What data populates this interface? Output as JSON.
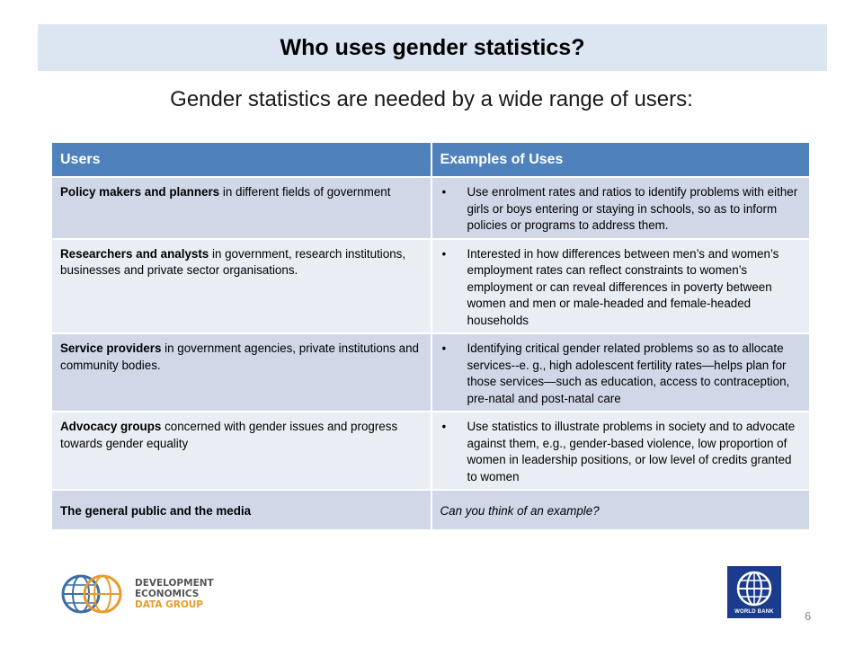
{
  "slide": {
    "title": "Who uses gender statistics?",
    "subtitle": "Gender statistics are needed by a wide range of users:",
    "page_number": "6"
  },
  "table": {
    "headers": [
      "Users",
      "Examples of Uses"
    ],
    "rows": [
      {
        "user_bold": "Policy makers and planners",
        "user_rest": " in different fields of government",
        "example": "Use enrolment rates and ratios to identify problems with either girls or boys entering or staying in schools, so as to inform policies or programs to address them."
      },
      {
        "user_bold": "Researchers and analysts",
        "user_rest": " in government, research institutions, businesses and private sector organisations.",
        "example": "Interested in how differences between men’s and women’s employment rates can reflect constraints to women’s employment  or  can reveal differences in poverty between women and men or male-headed and female-headed households"
      },
      {
        "user_bold": "Service providers",
        "user_rest": " in government agencies, private institutions and community bodies.",
        "example": "Identifying critical gender related problems so as to allocate services--e. g., high adolescent fertility rates—helps plan for those services—such as education, access to contraception, pre-natal and post-natal care"
      },
      {
        "user_bold": "Advocacy groups",
        "user_rest": " concerned with gender issues and progress towards gender equality",
        "example": "Use statistics to illustrate  problems in society and to advocate against them, e.g., gender-based violence, low proportion of women in leadership positions, or low level of credits granted to women"
      }
    ],
    "last_row": {
      "user": "The general public and the media",
      "example": "Can you think of an example?"
    },
    "bullet_char": "•"
  },
  "logos": {
    "dec_line1": "DEVELOPMENT ECONOMICS",
    "dec_line2": "DATA GROUP",
    "wb_text": "WORLD BANK",
    "colors": {
      "dec_blue": "#3a6ea5",
      "dec_orange": "#e89b2a",
      "wb_blue": "#1b3c8c"
    }
  },
  "colors": {
    "title_bg": "#dce6f2",
    "header_bg": "#4f81bd",
    "row_dark": "#d0d8e8",
    "row_light": "#e9edf4"
  }
}
